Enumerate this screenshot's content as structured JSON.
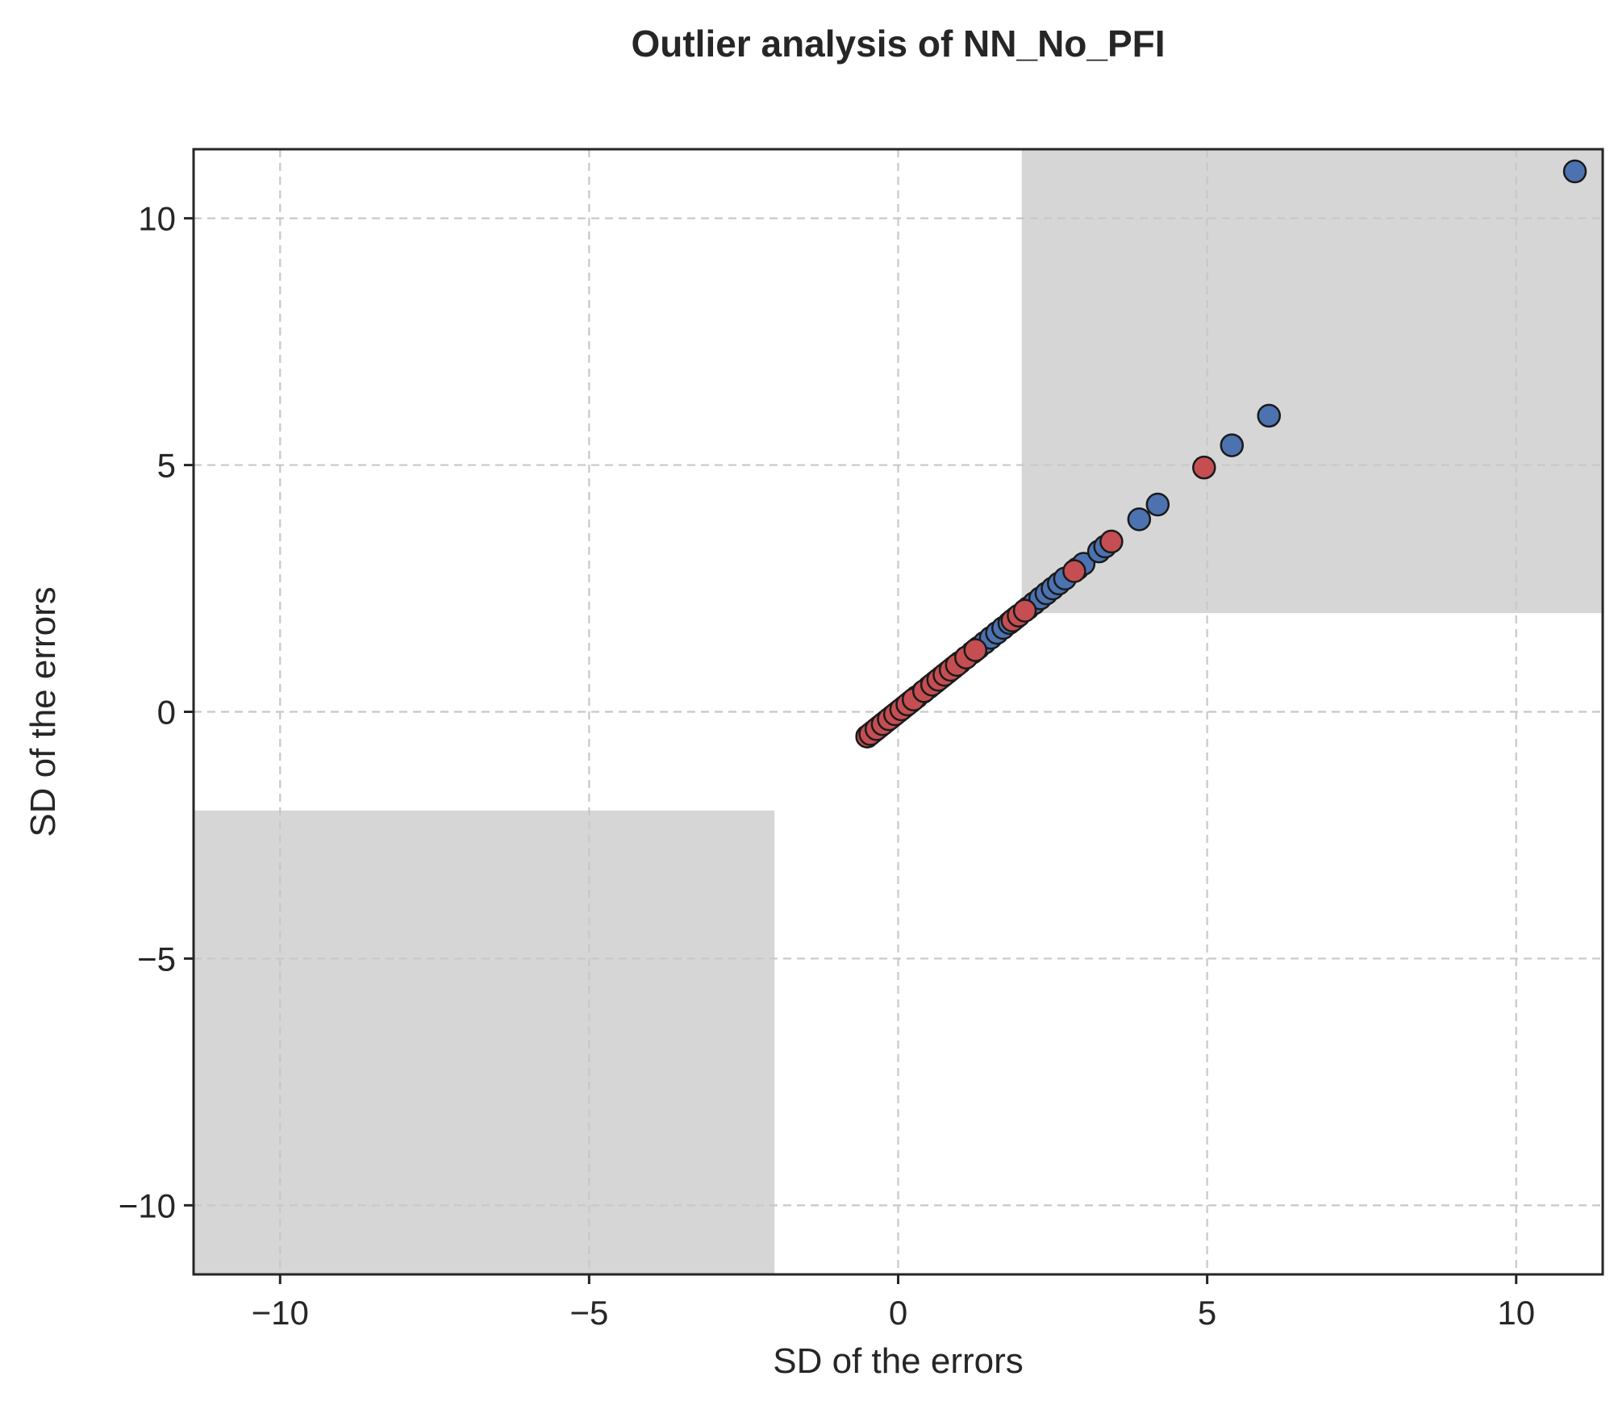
{
  "chart_data": {
    "type": "scatter",
    "title": "Outlier analysis of NN_No_PFI",
    "xlabel": "SD of the errors",
    "ylabel": "SD of the errors",
    "xlim": [
      -11.4,
      11.4
    ],
    "ylim": [
      -11.4,
      11.4
    ],
    "xticks": [
      -10,
      -5,
      0,
      5,
      10
    ],
    "yticks": [
      -10,
      -5,
      0,
      5,
      10
    ],
    "xtick_labels": [
      "−10",
      "−5",
      "0",
      "5",
      "10"
    ],
    "ytick_labels": [
      "−10",
      "−5",
      "0",
      "5",
      "10"
    ],
    "grid": true,
    "grid_style": "dashed",
    "outlier_regions": [
      {
        "x": [
          2,
          11.4
        ],
        "y": [
          2,
          11.4
        ],
        "color": "#d6d6d6"
      },
      {
        "x": [
          -11.4,
          -2
        ],
        "y": [
          -11.4,
          -2
        ],
        "color": "#d6d6d6"
      }
    ],
    "series": [
      {
        "color": "#4c72b0",
        "points": [
          [
            -0.5,
            -0.5
          ],
          [
            -0.4,
            -0.4
          ],
          [
            -0.3,
            -0.3
          ],
          [
            -0.2,
            -0.2
          ],
          [
            -0.1,
            -0.1
          ],
          [
            0.0,
            0.0
          ],
          [
            0.1,
            0.1
          ],
          [
            0.2,
            0.2
          ],
          [
            0.3,
            0.3
          ],
          [
            0.4,
            0.4
          ],
          [
            0.5,
            0.5
          ],
          [
            0.6,
            0.6
          ],
          [
            0.7,
            0.7
          ],
          [
            0.8,
            0.8
          ],
          [
            0.9,
            0.9
          ],
          [
            1.0,
            1.0
          ],
          [
            1.1,
            1.1
          ],
          [
            1.2,
            1.2
          ],
          [
            1.3,
            1.3
          ],
          [
            1.4,
            1.4
          ],
          [
            1.5,
            1.5
          ],
          [
            1.6,
            1.6
          ],
          [
            1.7,
            1.7
          ],
          [
            1.8,
            1.8
          ],
          [
            1.9,
            1.9
          ],
          [
            2.1,
            2.1
          ],
          [
            2.2,
            2.2
          ],
          [
            2.3,
            2.3
          ],
          [
            2.4,
            2.4
          ],
          [
            2.5,
            2.5
          ],
          [
            2.6,
            2.6
          ],
          [
            2.7,
            2.7
          ],
          [
            2.9,
            2.9
          ],
          [
            3.0,
            3.0
          ],
          [
            3.25,
            3.25
          ],
          [
            3.35,
            3.35
          ],
          [
            3.9,
            3.9
          ],
          [
            4.2,
            4.2
          ],
          [
            5.4,
            5.4
          ],
          [
            6.0,
            6.0
          ],
          [
            10.95,
            10.95
          ]
        ]
      },
      {
        "color": "#c44e52",
        "points": [
          [
            -0.5,
            -0.5
          ],
          [
            -0.45,
            -0.45
          ],
          [
            -0.35,
            -0.35
          ],
          [
            -0.25,
            -0.25
          ],
          [
            -0.15,
            -0.15
          ],
          [
            -0.05,
            -0.05
          ],
          [
            0.05,
            0.05
          ],
          [
            0.15,
            0.15
          ],
          [
            0.25,
            0.25
          ],
          [
            0.42,
            0.42
          ],
          [
            0.55,
            0.55
          ],
          [
            0.65,
            0.65
          ],
          [
            0.75,
            0.75
          ],
          [
            0.85,
            0.85
          ],
          [
            0.95,
            0.95
          ],
          [
            1.1,
            1.1
          ],
          [
            1.25,
            1.25
          ],
          [
            1.85,
            1.85
          ],
          [
            1.95,
            1.95
          ],
          [
            2.05,
            2.05
          ],
          [
            2.85,
            2.85
          ],
          [
            3.45,
            3.45
          ],
          [
            4.95,
            4.95
          ]
        ]
      }
    ]
  }
}
